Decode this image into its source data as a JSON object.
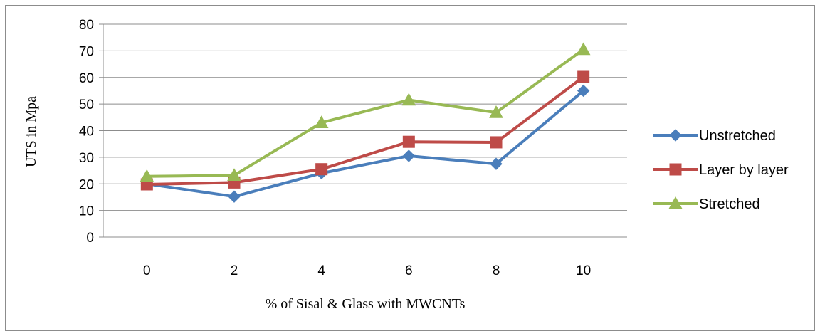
{
  "chart_data": {
    "type": "line",
    "categories": [
      "0",
      "2",
      "4",
      "6",
      "8",
      "10"
    ],
    "series": [
      {
        "name": "Unstretched",
        "values": [
          20,
          15.2,
          24,
          30.5,
          27.5,
          55
        ],
        "color": "#4a7ebb",
        "marker": "diamond"
      },
      {
        "name": "Layer by layer",
        "values": [
          19.8,
          20.5,
          25.5,
          35.8,
          35.6,
          60.2
        ],
        "color": "#be4b48",
        "marker": "square"
      },
      {
        "name": "Stretched",
        "values": [
          22.8,
          23.2,
          43,
          51.5,
          46.8,
          70.5
        ],
        "color": "#98b954",
        "marker": "triangle"
      }
    ],
    "xlabel": "% of Sisal & Glass with MWCNTs",
    "ylabel": "UTS in Mpa",
    "ylim": [
      0,
      80
    ],
    "yticks": [
      "0",
      "10",
      "20",
      "30",
      "40",
      "50",
      "60",
      "70",
      "80"
    ],
    "grid": true,
    "legend": "right"
  }
}
